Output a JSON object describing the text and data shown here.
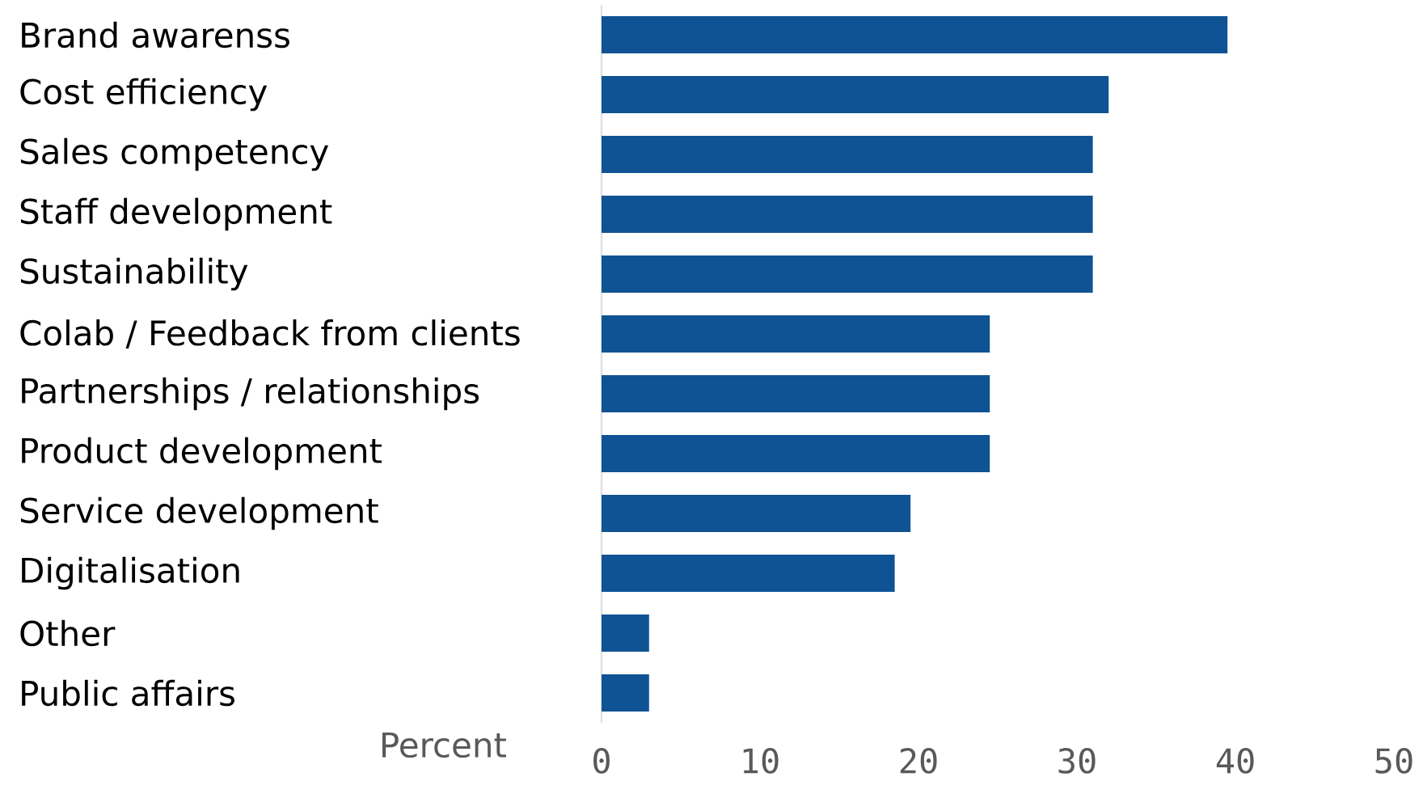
{
  "chart_data": {
    "type": "bar",
    "orientation": "horizontal",
    "categories": [
      "Brand awarenss",
      "Cost efficiency",
      "Sales competency",
      "Staff development",
      "Sustainability",
      "Colab / Feedback from clients",
      "Partnerships / relationships",
      "Product development",
      "Service development",
      "Digitalisation",
      "Other",
      "Public affairs"
    ],
    "values": [
      39.5,
      32,
      31,
      31,
      31,
      24.5,
      24.5,
      24.5,
      19.5,
      18.5,
      3,
      3
    ],
    "color": "#0f5394",
    "xlabel": "Percent",
    "xlim": [
      0,
      50
    ],
    "xticks": [
      0,
      10,
      20,
      30,
      40,
      50
    ]
  }
}
